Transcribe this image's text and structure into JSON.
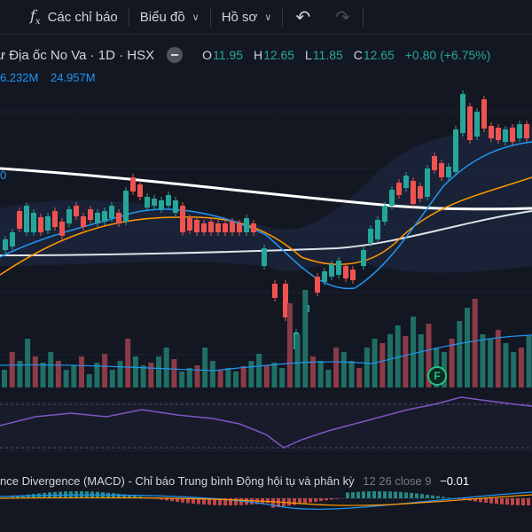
{
  "toolbar": {
    "indicators_label": "Các chỉ báo",
    "chart_label": "Biểu đồ",
    "profile_label": "Hồ sơ"
  },
  "symbol": {
    "title": "ư Địa ốc No Va · 1D · HSX",
    "open_key": "O",
    "open": "11.95",
    "high_key": "H",
    "high": "12.65",
    "low_key": "L",
    "low": "11.85",
    "close_key": "C",
    "close": "12.65",
    "change": "+0.80 (+6.75%)"
  },
  "volume": {
    "value1": "6.232M",
    "value2": "24.957M",
    "edge_label": "0"
  },
  "macd": {
    "title": "nce Divergence (MACD) - Chỉ báo Trung bình Động hội tụ và phân kỳ",
    "params": "12 26 close 9",
    "value": "−0.01"
  },
  "badge": {
    "label": "F"
  },
  "colors": {
    "background": "#131722",
    "up": "#26a69a",
    "down": "#ef5350",
    "ma_fast": "#2196f3",
    "ma_mid": "#ff9800",
    "ma_slow": "#ffffff",
    "rsi": "#7e57c2"
  },
  "icons": [
    "fx-icon",
    "chevron-down-icon",
    "undo-icon",
    "redo-icon",
    "eye-icon"
  ]
}
